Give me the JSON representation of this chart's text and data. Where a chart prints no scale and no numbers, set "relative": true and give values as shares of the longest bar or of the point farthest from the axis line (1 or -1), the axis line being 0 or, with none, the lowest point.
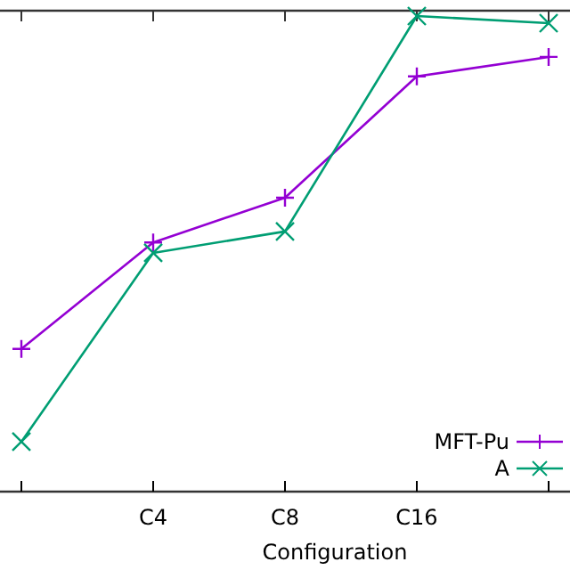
{
  "chart_data": {
    "type": "line",
    "relative": true,
    "xlabel": "Configuration",
    "categories": [
      null,
      "C4",
      "C8",
      "C16",
      null
    ],
    "series": [
      {
        "name": "MFT-Pu",
        "color": "#9400d3",
        "marker": "cross",
        "values": [
          0.3,
          0.524,
          0.618,
          0.873,
          0.914
        ]
      },
      {
        "name": "A",
        "color": "#009e73",
        "marker": "x",
        "values": [
          0.105,
          0.502,
          0.547,
          1,
          0.985
        ]
      }
    ],
    "legend": "bottom right"
  }
}
